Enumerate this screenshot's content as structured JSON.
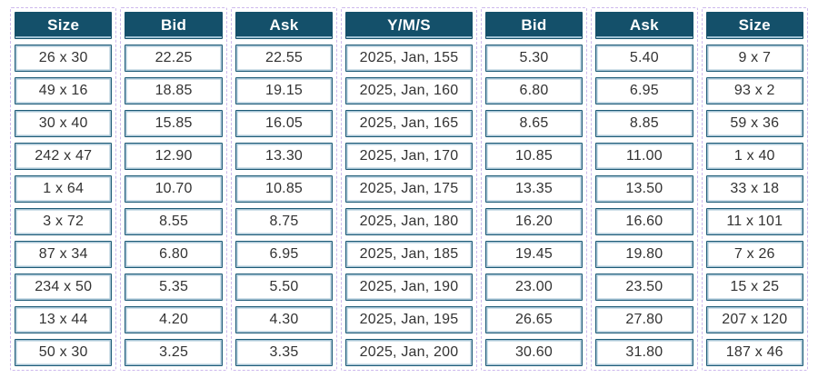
{
  "widget": {
    "description_rows": 10,
    "colors": {
      "header_bg": "#14506A",
      "header_text": "#FFFFFF",
      "cell_border_outer": "#1E5B77",
      "cell_border_inner": "#A3C2D3",
      "cell_text": "#333333",
      "column_outline_dashed": "#CDB9EC",
      "background": "#FFFFFF"
    }
  },
  "table": {
    "columns": [
      {
        "key": "size_left",
        "header": "Size",
        "wide": false,
        "values": [
          "26 x 30",
          "49 x 16",
          "30 x 40",
          "242 x 47",
          "1 x 64",
          "3 x 72",
          "87 x 34",
          "234 x 50",
          "13 x 44",
          "50 x 30"
        ]
      },
      {
        "key": "bid_left",
        "header": "Bid",
        "wide": false,
        "values": [
          "22.25",
          "18.85",
          "15.85",
          "12.90",
          "10.70",
          "8.55",
          "6.80",
          "5.35",
          "4.20",
          "3.25"
        ]
      },
      {
        "key": "ask_left",
        "header": "Ask",
        "wide": false,
        "values": [
          "22.55",
          "19.15",
          "16.05",
          "13.30",
          "10.85",
          "8.75",
          "6.95",
          "5.50",
          "4.30",
          "3.35"
        ]
      },
      {
        "key": "yms",
        "header": "Y/M/S",
        "wide": true,
        "values": [
          "2025, Jan, 155",
          "2025, Jan, 160",
          "2025, Jan, 165",
          "2025, Jan, 170",
          "2025, Jan, 175",
          "2025, Jan, 180",
          "2025, Jan, 185",
          "2025, Jan, 190",
          "2025, Jan, 195",
          "2025, Jan, 200"
        ]
      },
      {
        "key": "bid_right",
        "header": "Bid",
        "wide": false,
        "values": [
          "5.30",
          "6.80",
          "8.65",
          "10.85",
          "13.35",
          "16.20",
          "19.45",
          "23.00",
          "26.65",
          "30.60"
        ]
      },
      {
        "key": "ask_right",
        "header": "Ask",
        "wide": false,
        "values": [
          "5.40",
          "6.95",
          "8.85",
          "11.00",
          "13.50",
          "16.60",
          "19.80",
          "23.50",
          "27.80",
          "31.80"
        ]
      },
      {
        "key": "size_right",
        "header": "Size",
        "wide": false,
        "values": [
          "9 x 7",
          "93 x 2",
          "59 x 36",
          "1 x 40",
          "33 x 18",
          "11 x 101",
          "7 x 26",
          "15 x 25",
          "207 x 120",
          "187 x 46"
        ]
      }
    ]
  },
  "chart_data": {
    "type": "table",
    "title": "",
    "columns": [
      "Size",
      "Bid",
      "Ask",
      "Y/M/S",
      "Bid",
      "Ask",
      "Size"
    ],
    "rows": [
      [
        "26 x 30",
        "22.25",
        "22.55",
        "2025, Jan, 155",
        "5.30",
        "5.40",
        "9 x 7"
      ],
      [
        "49 x 16",
        "18.85",
        "19.15",
        "2025, Jan, 160",
        "6.80",
        "6.95",
        "93 x 2"
      ],
      [
        "30 x 40",
        "15.85",
        "16.05",
        "2025, Jan, 165",
        "8.65",
        "8.85",
        "59 x 36"
      ],
      [
        "242 x 47",
        "12.90",
        "13.30",
        "2025, Jan, 170",
        "10.85",
        "11.00",
        "1 x 40"
      ],
      [
        "1 x 64",
        "10.70",
        "10.85",
        "2025, Jan, 175",
        "13.35",
        "13.50",
        "33 x 18"
      ],
      [
        "3 x 72",
        "8.55",
        "8.75",
        "2025, Jan, 180",
        "16.20",
        "16.60",
        "11 x 101"
      ],
      [
        "87 x 34",
        "6.80",
        "6.95",
        "2025, Jan, 185",
        "19.45",
        "19.80",
        "7 x 26"
      ],
      [
        "234 x 50",
        "5.35",
        "5.50",
        "2025, Jan, 190",
        "23.00",
        "23.50",
        "15 x 25"
      ],
      [
        "13 x 44",
        "4.20",
        "4.30",
        "2025, Jan, 195",
        "26.65",
        "27.80",
        "207 x 120"
      ],
      [
        "50 x 30",
        "3.25",
        "3.35",
        "2025, Jan, 200",
        "30.60",
        "31.80",
        "187 x 46"
      ]
    ]
  }
}
